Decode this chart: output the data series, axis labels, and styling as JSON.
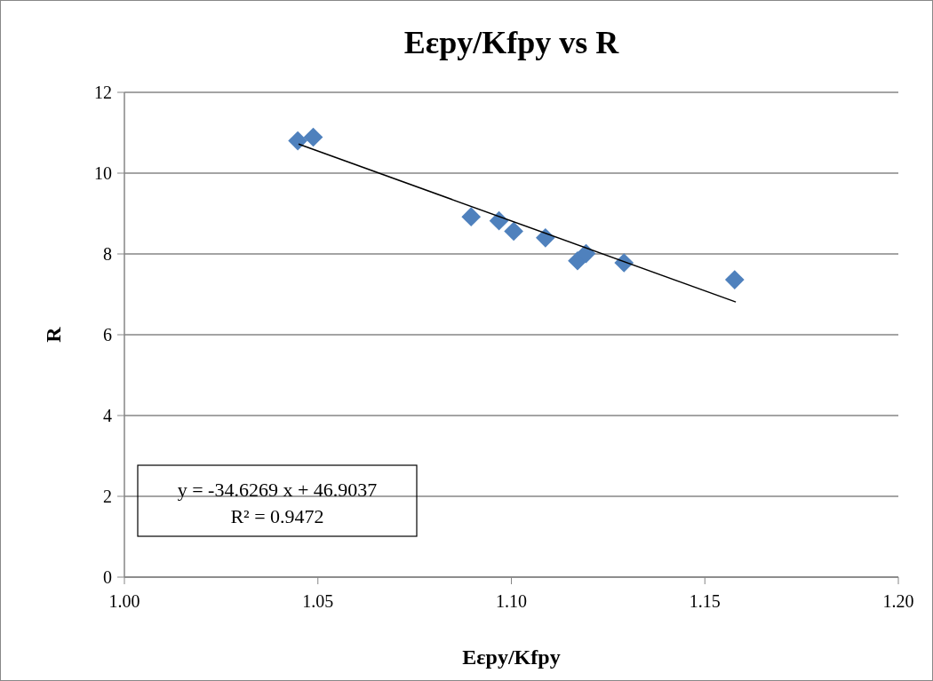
{
  "chart_data": {
    "type": "scatter",
    "title": "Eεpy/Kfpy vs R",
    "xlabel": "Eεpy/Kfpy",
    "ylabel": "R",
    "xlim": [
      1.0,
      1.2
    ],
    "xticks": [
      {
        "value": 1.0,
        "label": "1.00"
      },
      {
        "value": 1.05,
        "label": "1.05"
      },
      {
        "value": 1.1,
        "label": "1.10"
      },
      {
        "value": 1.15,
        "label": "1.15"
      },
      {
        "value": 1.2,
        "label": "1.20"
      }
    ],
    "ylim": [
      0,
      12
    ],
    "yticks": [
      0,
      2,
      4,
      6,
      8,
      10,
      12
    ],
    "grid": "y",
    "series": [
      {
        "type": "scatter",
        "marker": "diamond",
        "color": "#4f81bd",
        "x": [
          1.0448,
          1.0488,
          1.0896,
          1.0968,
          1.1006,
          1.1088,
          1.1171,
          1.1193,
          1.1291,
          1.1577
        ],
        "values": [
          10.8,
          10.89,
          8.92,
          8.82,
          8.56,
          8.4,
          7.83,
          8.01,
          7.78,
          7.36
        ]
      },
      {
        "type": "line",
        "marker": "none",
        "color": "#000000",
        "x": [
          1.045,
          1.158
        ],
        "values": [
          10.72,
          6.81
        ]
      }
    ],
    "annotations": [
      "y = -34.6269 x + 46.9037",
      "R² = 0.9472"
    ]
  }
}
